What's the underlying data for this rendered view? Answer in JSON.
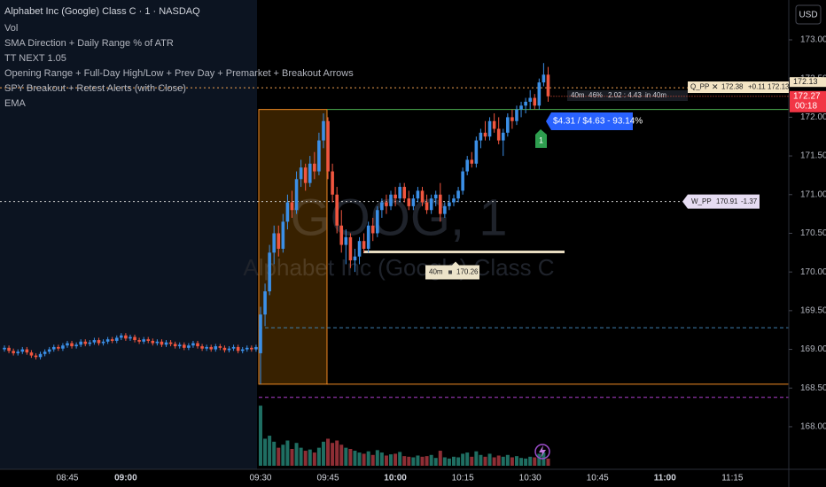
{
  "header": {
    "lines": [
      "Alphabet Inc (Google) Class C · 1 · NASDAQ",
      "Vol",
      "SMA Direction + Daily Range % of ATR",
      "TT NEXT 1.05",
      "Opening Range + Full-Day High/Low + Prev Day + Premarket + Breakout Arrows",
      "SPY Breakout + Retest Alerts (with Close)",
      "EMA"
    ]
  },
  "watermark": {
    "symbol": "GOOG, 1",
    "name": "Alphabet Inc (Google) Class C"
  },
  "currency": "USD",
  "last_price": {
    "price": 172.27,
    "countdown": "00:18"
  },
  "q_pp": {
    "name": "Q_PP",
    "price": 172.38,
    "change": "+0.11",
    "low": 172.13
  },
  "w_pp": {
    "name": "W_PP",
    "price": 170.91,
    "change": -1.37
  },
  "stats": [
    "40m",
    "46%",
    "2.02 : 4.43",
    "in 40m"
  ],
  "trade_label": "$4.31 / $4.63 - 93.14%",
  "signal": "1",
  "premarket_level": {
    "tag": "40m",
    "price": 170.26
  },
  "levels": {
    "opening_range_high": 172.1,
    "opening_range_low": 168.55,
    "prev_close": 169.28,
    "day_low": 168.38
  },
  "chart_data": {
    "type": "candlestick",
    "up_color": "#3b8fe6",
    "down_color": "#f0563f",
    "vol_up_color": "#1f6e62",
    "vol_down_color": "#8e2e35",
    "ylim": [
      167.45,
      173.515
    ],
    "yticks": [
      {
        "value": 168,
        "label": "168.00"
      },
      {
        "value": 168.5,
        "label": "168.50"
      },
      {
        "value": 169,
        "label": "169.00"
      },
      {
        "value": 169.5,
        "label": "169.50"
      },
      {
        "value": 170,
        "label": "170.00"
      },
      {
        "value": 170.5,
        "label": "170.50"
      },
      {
        "value": 171,
        "label": "171.00"
      },
      {
        "value": 171.5,
        "label": "171.50"
      },
      {
        "value": 172,
        "label": "172.00"
      },
      {
        "value": 172.5,
        "label": "172.50"
      },
      {
        "value": 173,
        "label": "173.00"
      }
    ],
    "volume_ylim": [
      0,
      140
    ],
    "xticks": [
      "08:45",
      "09:00",
      "09:30",
      "09:45",
      "10:00",
      "10:15",
      "10:30",
      "10:45",
      "11:00",
      "11:15"
    ],
    "x": [
      "08:31",
      "08:32",
      "08:33",
      "08:34",
      "08:35",
      "08:36",
      "08:37",
      "08:38",
      "08:39",
      "08:40",
      "08:41",
      "08:42",
      "08:43",
      "08:44",
      "08:45",
      "08:46",
      "08:47",
      "08:48",
      "08:49",
      "08:50",
      "08:51",
      "08:52",
      "08:53",
      "08:54",
      "08:55",
      "08:56",
      "08:57",
      "09:00",
      "09:01",
      "09:02",
      "09:03",
      "09:04",
      "09:05",
      "09:06",
      "09:07",
      "09:08",
      "09:09",
      "09:10",
      "09:11",
      "09:12",
      "09:13",
      "09:14",
      "09:15",
      "09:16",
      "09:17",
      "09:18",
      "09:19",
      "09:20",
      "09:21",
      "09:22",
      "09:23",
      "09:24",
      "09:25",
      "09:26",
      "09:27",
      "09:28",
      "09:29",
      "09:30",
      "09:31",
      "09:32",
      "09:33",
      "09:34",
      "09:35",
      "09:36",
      "09:37",
      "09:38",
      "09:39",
      "09:40",
      "09:41",
      "09:42",
      "09:43",
      "09:44",
      "09:45",
      "09:46",
      "09:47",
      "09:48",
      "09:49",
      "09:50",
      "09:51",
      "09:52",
      "09:53",
      "09:54",
      "09:55",
      "09:56",
      "09:57",
      "09:58",
      "09:59",
      "10:00",
      "10:01",
      "10:02",
      "10:03",
      "10:04",
      "10:05",
      "10:06",
      "10:07",
      "10:08",
      "10:09",
      "10:10",
      "10:11",
      "10:12",
      "10:13",
      "10:14",
      "10:15",
      "10:16",
      "10:17",
      "10:18",
      "10:19",
      "10:20",
      "10:21",
      "10:22",
      "10:23",
      "10:24",
      "10:25",
      "10:26",
      "10:27",
      "10:28",
      "10:29",
      "10:30",
      "10:31",
      "10:32",
      "10:33",
      "10:34"
    ],
    "open": [
      169.0,
      169.02,
      168.98,
      168.95,
      168.97,
      169.0,
      168.96,
      168.92,
      168.9,
      168.94,
      168.97,
      169.0,
      169.03,
      169.01,
      169.05,
      169.08,
      169.04,
      169.06,
      169.1,
      169.07,
      169.09,
      169.12,
      169.08,
      169.1,
      169.13,
      169.11,
      169.15,
      169.18,
      169.14,
      169.16,
      169.12,
      169.1,
      169.13,
      169.11,
      169.08,
      169.1,
      169.06,
      169.09,
      169.07,
      169.04,
      169.06,
      169.02,
      169.05,
      169.08,
      169.04,
      169.01,
      169.03,
      169.0,
      169.04,
      169.02,
      168.99,
      169.01,
      169.03,
      168.98,
      169.0,
      169.02,
      169.0,
      168.95,
      169.45,
      169.75,
      170.25,
      170.5,
      170.3,
      170.65,
      170.9,
      170.8,
      171.2,
      171.35,
      171.15,
      171.4,
      171.3,
      171.7,
      171.95,
      171.3,
      171.0,
      170.6,
      170.35,
      170.45,
      170.15,
      170.2,
      170.4,
      170.3,
      170.6,
      170.5,
      170.8,
      170.9,
      170.85,
      171.0,
      170.95,
      171.1,
      170.95,
      170.85,
      170.95,
      171.05,
      170.9,
      170.8,
      170.95,
      171.0,
      170.75,
      170.85,
      170.9,
      170.95,
      171.05,
      171.3,
      171.45,
      171.4,
      171.7,
      171.8,
      171.75,
      171.95,
      171.85,
      171.7,
      171.8,
      172.0,
      171.95,
      172.1,
      172.15,
      172.2,
      172.25,
      172.15,
      172.45,
      172.55
    ],
    "high": [
      169.05,
      169.05,
      169.01,
      169.0,
      169.03,
      169.03,
      168.99,
      168.95,
      168.97,
      169.0,
      169.03,
      169.06,
      169.06,
      169.08,
      169.11,
      169.11,
      169.09,
      169.13,
      169.13,
      169.12,
      169.15,
      169.15,
      169.13,
      169.16,
      169.16,
      169.18,
      169.21,
      169.21,
      169.19,
      169.19,
      169.15,
      169.16,
      169.16,
      169.14,
      169.13,
      169.13,
      169.12,
      169.12,
      169.1,
      169.09,
      169.09,
      169.08,
      169.11,
      169.11,
      169.07,
      169.06,
      169.06,
      169.07,
      169.07,
      169.05,
      169.04,
      169.06,
      169.06,
      169.03,
      169.05,
      169.05,
      169.06,
      169.55,
      169.85,
      170.35,
      170.6,
      170.6,
      170.75,
      171.0,
      171.05,
      171.3,
      171.45,
      171.4,
      171.5,
      171.55,
      171.8,
      172.05,
      172.0,
      171.4,
      171.1,
      170.8,
      170.55,
      170.5,
      170.3,
      170.45,
      170.5,
      170.65,
      170.7,
      170.85,
      170.95,
      171.0,
      171.05,
      171.1,
      171.15,
      171.15,
      171.05,
      171.0,
      171.1,
      171.1,
      171.0,
      171.0,
      171.05,
      171.15,
      170.9,
      171.0,
      171.0,
      171.1,
      171.35,
      171.5,
      171.55,
      171.75,
      171.85,
      171.95,
      172.0,
      172.05,
      172.0,
      171.85,
      172.05,
      172.1,
      172.15,
      172.2,
      172.25,
      172.35,
      172.3,
      172.5,
      172.7,
      172.65
    ],
    "low": [
      168.97,
      168.95,
      168.92,
      168.92,
      168.94,
      168.93,
      168.89,
      168.87,
      168.87,
      168.91,
      168.94,
      168.97,
      168.98,
      168.98,
      169.02,
      169.01,
      169.01,
      169.03,
      169.04,
      169.04,
      169.06,
      169.05,
      169.05,
      169.07,
      169.08,
      169.08,
      169.12,
      169.11,
      169.11,
      169.09,
      169.07,
      169.07,
      169.08,
      169.05,
      169.05,
      169.03,
      169.03,
      169.04,
      169.01,
      169.01,
      168.99,
      168.99,
      169.02,
      169.01,
      168.98,
      168.98,
      168.97,
      168.97,
      168.99,
      168.96,
      168.96,
      168.98,
      168.95,
      168.95,
      168.97,
      168.97,
      168.97,
      168.55,
      169.3,
      169.7,
      170.1,
      170.2,
      170.25,
      170.55,
      170.7,
      170.75,
      171.1,
      171.05,
      171.1,
      171.2,
      171.25,
      171.6,
      171.2,
      170.9,
      170.5,
      170.25,
      170.1,
      170.05,
      170.0,
      170.1,
      170.25,
      170.25,
      170.4,
      170.45,
      170.7,
      170.75,
      170.8,
      170.85,
      170.9,
      170.9,
      170.8,
      170.8,
      170.9,
      170.85,
      170.75,
      170.75,
      170.85,
      170.65,
      170.7,
      170.8,
      170.85,
      170.9,
      171.0,
      171.25,
      171.35,
      171.35,
      171.6,
      171.7,
      171.7,
      171.8,
      171.65,
      171.5,
      171.75,
      171.85,
      171.9,
      172.0,
      172.05,
      172.1,
      172.1,
      172.1,
      172.4,
      172.2
    ],
    "close": [
      169.02,
      168.98,
      168.95,
      168.97,
      169.0,
      168.96,
      168.92,
      168.9,
      168.94,
      168.97,
      169.0,
      169.03,
      169.01,
      169.05,
      169.08,
      169.04,
      169.06,
      169.1,
      169.07,
      169.09,
      169.12,
      169.08,
      169.1,
      169.13,
      169.11,
      169.15,
      169.18,
      169.14,
      169.16,
      169.12,
      169.1,
      169.13,
      169.11,
      169.08,
      169.1,
      169.06,
      169.09,
      169.07,
      169.04,
      169.06,
      169.02,
      169.05,
      169.08,
      169.04,
      169.01,
      169.03,
      169.0,
      169.04,
      169.02,
      168.99,
      169.01,
      169.03,
      168.98,
      169.0,
      169.02,
      169.0,
      169.03,
      169.45,
      169.75,
      170.25,
      170.5,
      170.3,
      170.65,
      170.9,
      170.8,
      171.2,
      171.35,
      171.15,
      171.4,
      171.3,
      171.7,
      171.95,
      171.3,
      171.0,
      170.6,
      170.35,
      170.45,
      170.15,
      170.2,
      170.4,
      170.3,
      170.6,
      170.5,
      170.8,
      170.9,
      170.85,
      171.0,
      170.95,
      171.1,
      170.95,
      170.85,
      170.95,
      171.05,
      170.9,
      170.8,
      170.95,
      171.0,
      170.75,
      170.85,
      170.9,
      170.95,
      171.05,
      171.3,
      171.45,
      171.4,
      171.7,
      171.8,
      171.75,
      171.95,
      171.85,
      171.7,
      171.8,
      172.0,
      171.95,
      172.1,
      172.15,
      172.2,
      172.25,
      172.15,
      172.45,
      172.55,
      172.27
    ],
    "volume": [
      null,
      null,
      null,
      null,
      null,
      null,
      null,
      null,
      null,
      null,
      null,
      null,
      null,
      null,
      null,
      null,
      null,
      null,
      null,
      null,
      null,
      null,
      null,
      null,
      null,
      null,
      null,
      null,
      null,
      null,
      null,
      null,
      null,
      null,
      null,
      null,
      null,
      null,
      null,
      null,
      null,
      null,
      null,
      null,
      null,
      null,
      null,
      null,
      null,
      null,
      null,
      null,
      null,
      null,
      null,
      null,
      null,
      100,
      45,
      50,
      40,
      30,
      35,
      42,
      28,
      38,
      30,
      25,
      27,
      22,
      30,
      40,
      45,
      38,
      42,
      35,
      30,
      28,
      25,
      22,
      20,
      24,
      18,
      26,
      22,
      17,
      19,
      20,
      23,
      16,
      15,
      14,
      17,
      15,
      16,
      18,
      13,
      25,
      14,
      12,
      15,
      14,
      20,
      22,
      15,
      24,
      18,
      15,
      20,
      14,
      17,
      15,
      18,
      14,
      16,
      13,
      12,
      15,
      14,
      20,
      22,
      12
    ]
  }
}
